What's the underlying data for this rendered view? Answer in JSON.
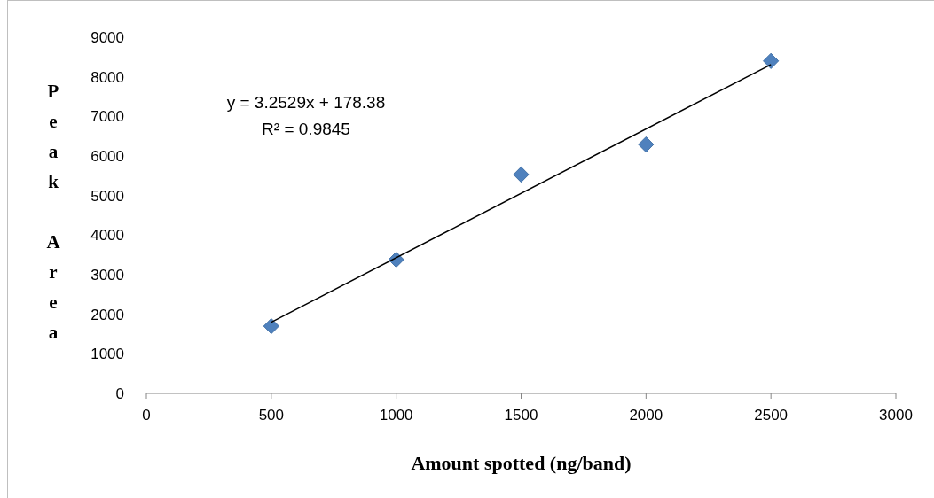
{
  "chart_data": {
    "type": "scatter",
    "xlabel": "Amount spotted (ng/band)",
    "ylabel": "Peak Area",
    "annotations": [
      "y = 3.2529x + 178.38",
      "R² = 0.9845"
    ],
    "xlim": [
      0,
      3000
    ],
    "xticks": [
      0,
      500,
      1000,
      1500,
      2000,
      2500,
      3000
    ],
    "ylim": [
      0,
      9000
    ],
    "yticks": [
      0,
      1000,
      2000,
      3000,
      4000,
      5000,
      6000,
      7000,
      8000,
      9000
    ],
    "grid": false,
    "marker": "diamond",
    "series": [
      {
        "color": "#4f81bd",
        "x": [
          500,
          1000,
          1500,
          2000,
          2500
        ],
        "values": [
          1700,
          3380,
          5530,
          6290,
          8400
        ]
      },
      {
        "type": "line",
        "color": "#000000",
        "x": [
          500,
          2500
        ],
        "values": [
          1800,
          8310
        ],
        "marker": "none"
      }
    ]
  }
}
